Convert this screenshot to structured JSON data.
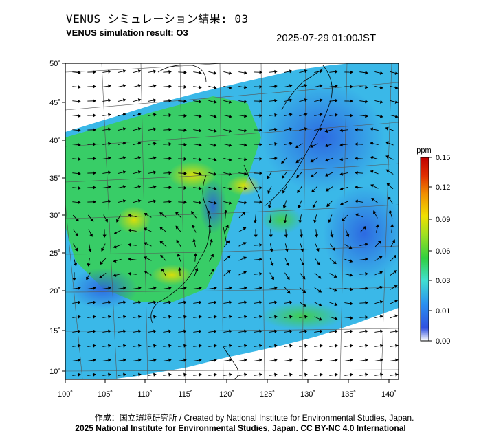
{
  "header": {
    "title_jp": "VENUS シミュレーション結果: 03",
    "title_en": "VENUS simulation result: O3",
    "timestamp": "2025-07-29 01:00JST"
  },
  "map": {
    "lon_ticks": [
      "100˚",
      "105˚",
      "110˚",
      "115˚",
      "120˚",
      "125˚",
      "130˚",
      "135˚",
      "140˚"
    ],
    "lat_ticks": [
      "50˚",
      "45˚",
      "40˚",
      "35˚",
      "30˚",
      "25˚",
      "20˚",
      "15˚",
      "10˚"
    ],
    "lon_range": [
      100,
      142
    ],
    "lat_range": [
      9,
      51
    ]
  },
  "colorbar": {
    "unit": "ppm",
    "ticks": [
      "0.15",
      "0.12",
      "0.09",
      "0.06",
      "0.03",
      "0.01",
      "0.00"
    ],
    "colors": [
      "#ffffff",
      "#3050e0",
      "#2aa0f0",
      "#40e0d0",
      "#30d040",
      "#c0e020",
      "#f0e000",
      "#f09000",
      "#e03000",
      "#c00000"
    ]
  },
  "footer": {
    "credit_jp": "作成：国立環境研究所 / Created by National Institute for Environmental Studies, Japan.",
    "copyright": "2025 National Institute for Environmental Studies, Japan. CC BY-NC 4.0 International"
  }
}
